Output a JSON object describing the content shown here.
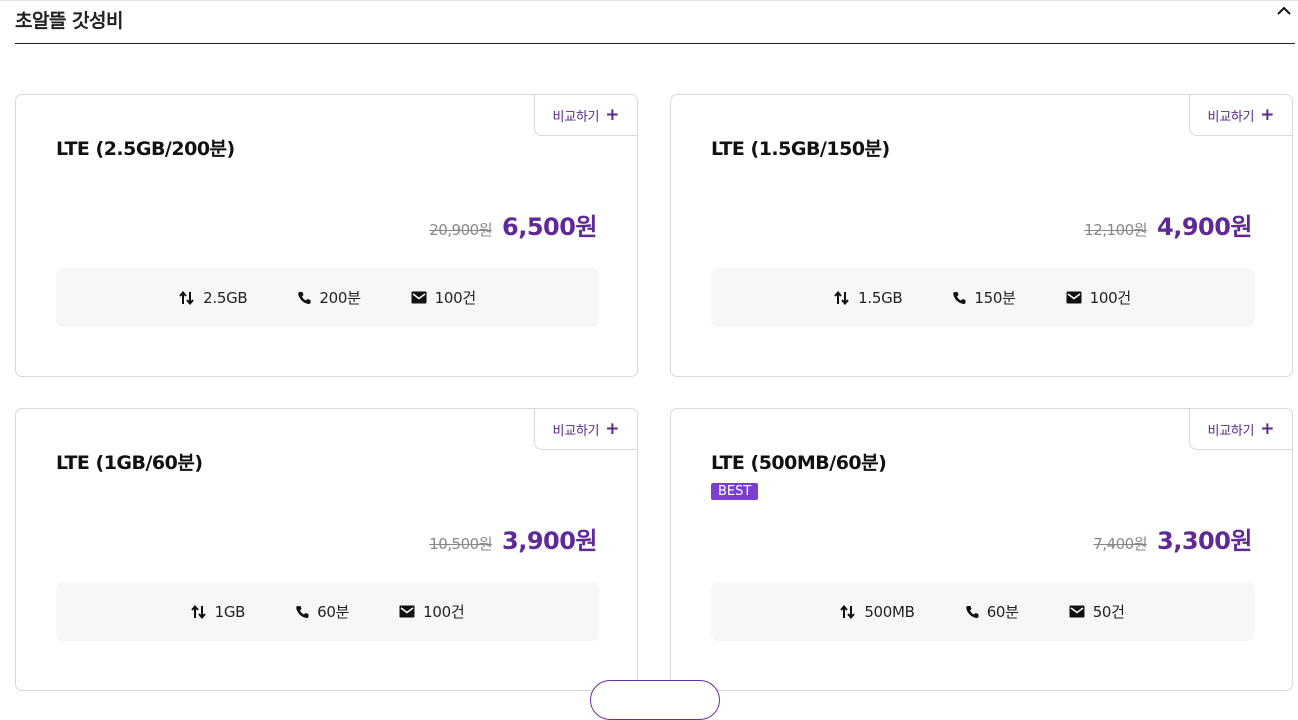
{
  "section": {
    "title": "초알뜰 갓성비"
  },
  "compare_label": "비교하기",
  "plans": [
    {
      "name": "LTE (2.5GB/200분)",
      "badge": "",
      "original_price": "20,900원",
      "price": "6,500원",
      "data": "2.5GB",
      "voice": "200분",
      "sms": "100건"
    },
    {
      "name": "LTE (1.5GB/150분)",
      "badge": "",
      "original_price": "12,100원",
      "price": "4,900원",
      "data": "1.5GB",
      "voice": "150분",
      "sms": "100건"
    },
    {
      "name": "LTE (1GB/60분)",
      "badge": "",
      "original_price": "10,500원",
      "price": "3,900원",
      "data": "1GB",
      "voice": "60분",
      "sms": "100건"
    },
    {
      "name": "LTE (500MB/60분)",
      "badge": "BEST",
      "original_price": "7,400원",
      "price": "3,300원",
      "data": "500MB",
      "voice": "60분",
      "sms": "50건"
    }
  ],
  "icons": {
    "collapse": "chevron-up-icon",
    "data": "data-arrows-icon",
    "voice": "phone-icon",
    "sms": "mail-icon",
    "add": "plus-icon"
  },
  "colors": {
    "accent": "#5f2a96",
    "badge": "#7a3fd0",
    "spec_bg": "#f6f7f9"
  }
}
